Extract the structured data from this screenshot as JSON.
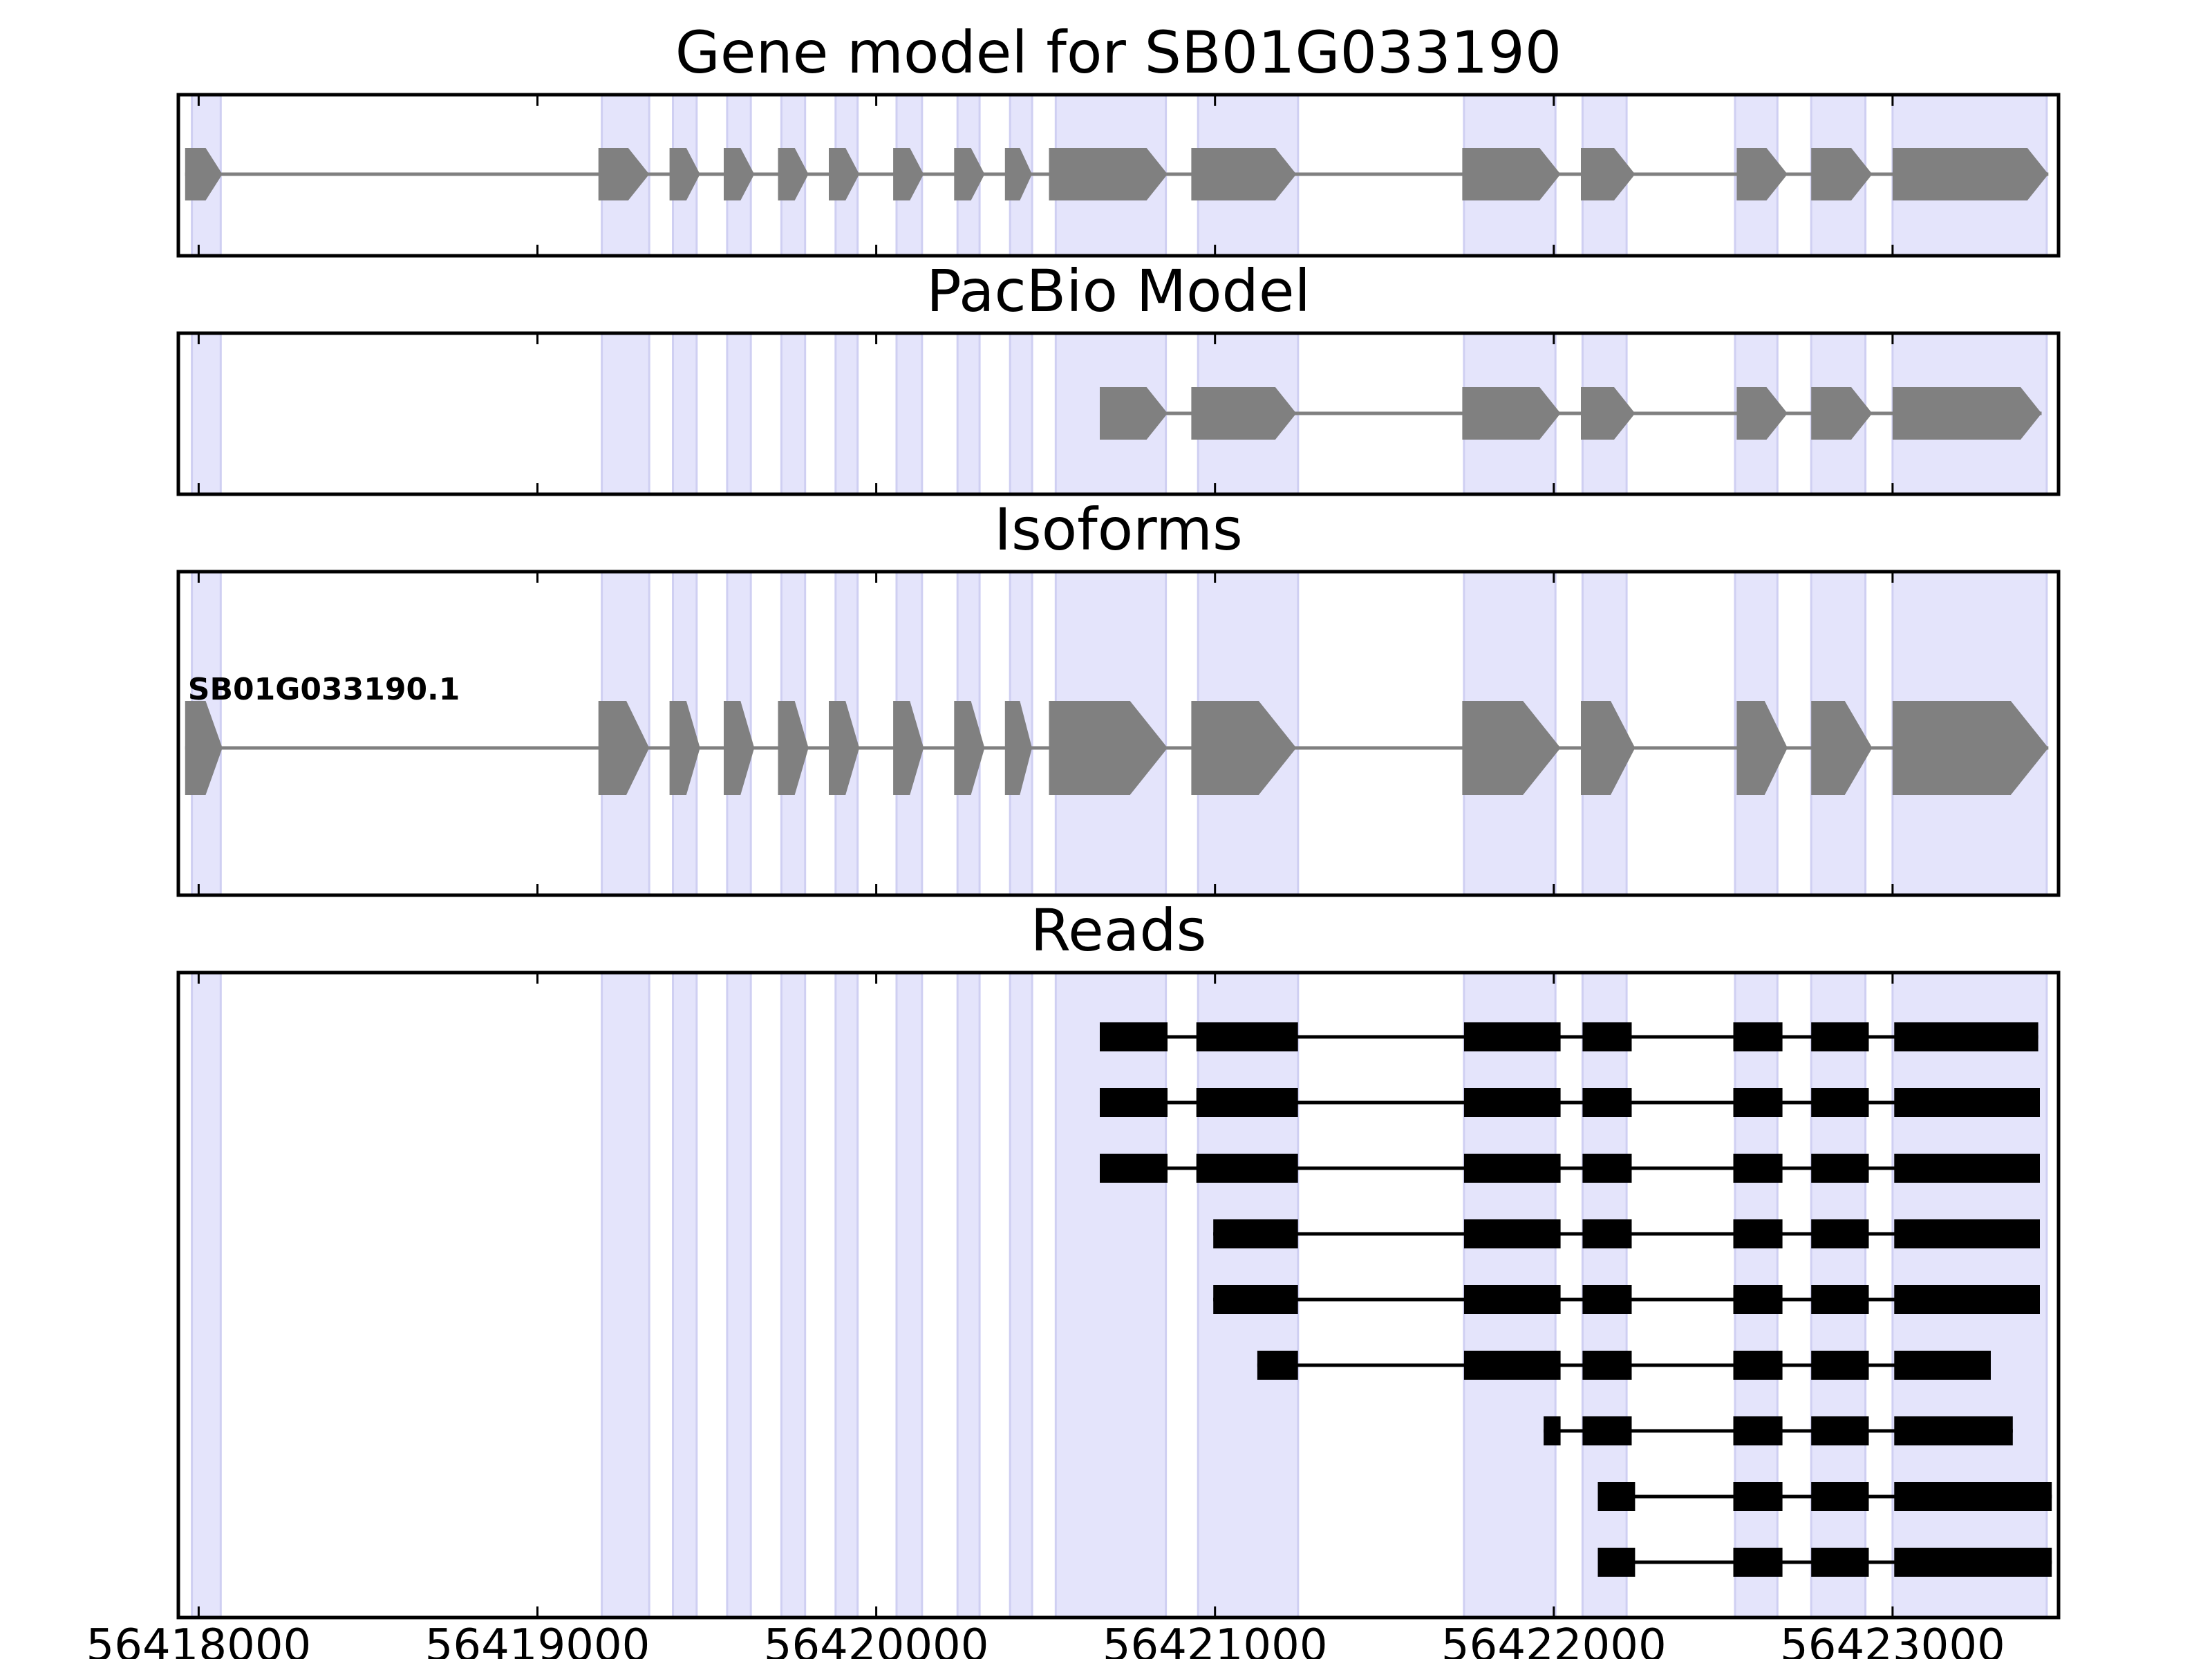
{
  "chart_data": {
    "type": "gene-model-track",
    "title": "Gene model for SB01G033190",
    "xlim": [
      56417940,
      56423490
    ],
    "xticks": [
      56418000,
      56419000,
      56420000,
      56421000,
      56422000,
      56423000
    ],
    "xtick_labels": [
      "56418000",
      "56419000",
      "56420000",
      "56421000",
      "56422000",
      "56423000"
    ],
    "shade_color": "#e4e4fb",
    "shade_edge_color": "#cfcff2",
    "model_color": "#808080",
    "read_color": "#000000",
    "shaded_regions": [
      [
        56417980,
        56418065
      ],
      [
        56419190,
        56419330
      ],
      [
        56419400,
        56419470
      ],
      [
        56419560,
        56419630
      ],
      [
        56419720,
        56419790
      ],
      [
        56419880,
        56419945
      ],
      [
        56420060,
        56420135
      ],
      [
        56420240,
        56420305
      ],
      [
        56420395,
        56420460
      ],
      [
        56420530,
        56420855
      ],
      [
        56420950,
        56421245
      ],
      [
        56421735,
        56422005
      ],
      [
        56422085,
        56422215
      ],
      [
        56422535,
        56422660
      ],
      [
        56422760,
        56422920
      ],
      [
        56423000,
        56423455
      ]
    ],
    "panels": [
      {
        "title": "Gene model for SB01G033190",
        "kind": "gene-model",
        "exons": [
          [
            56417960,
            56418070
          ],
          [
            56419180,
            56419330
          ],
          [
            56419390,
            56419480
          ],
          [
            56419550,
            56419640
          ],
          [
            56419710,
            56419800
          ],
          [
            56419860,
            56419950
          ],
          [
            56420050,
            56420140
          ],
          [
            56420230,
            56420320
          ],
          [
            56420380,
            56420460
          ],
          [
            56420510,
            56420860
          ],
          [
            56420930,
            56421240
          ],
          [
            56421730,
            56422020
          ],
          [
            56422080,
            56422240
          ],
          [
            56422540,
            56422690
          ],
          [
            56422760,
            56422940
          ],
          [
            56423000,
            56423460
          ]
        ]
      },
      {
        "title": "PacBio Model",
        "kind": "gene-model",
        "exons": [
          [
            56420660,
            56420860
          ],
          [
            56420930,
            56421240
          ],
          [
            56421730,
            56422020
          ],
          [
            56422080,
            56422240
          ],
          [
            56422540,
            56422690
          ],
          [
            56422760,
            56422940
          ],
          [
            56423000,
            56423440
          ]
        ]
      },
      {
        "title": "Isoforms",
        "kind": "isoform",
        "isoform_label": "SB01G033190.1",
        "exons": [
          [
            56417960,
            56418070
          ],
          [
            56419180,
            56419330
          ],
          [
            56419390,
            56419480
          ],
          [
            56419550,
            56419640
          ],
          [
            56419710,
            56419800
          ],
          [
            56419860,
            56419950
          ],
          [
            56420050,
            56420140
          ],
          [
            56420230,
            56420320
          ],
          [
            56420380,
            56420460
          ],
          [
            56420510,
            56420860
          ],
          [
            56420930,
            56421240
          ],
          [
            56421730,
            56422020
          ],
          [
            56422080,
            56422240
          ],
          [
            56422540,
            56422690
          ],
          [
            56422760,
            56422940
          ],
          [
            56423000,
            56423460
          ]
        ]
      },
      {
        "title": "Reads",
        "kind": "reads",
        "reads": [
          [
            [
              56420660,
              56420860
            ],
            [
              56420945,
              56421245
            ],
            [
              56421735,
              56422020
            ],
            [
              56422085,
              56422230
            ],
            [
              56422530,
              56422675
            ],
            [
              56422760,
              56422930
            ],
            [
              56423005,
              56423430
            ]
          ],
          [
            [
              56420660,
              56420860
            ],
            [
              56420945,
              56421245
            ],
            [
              56421735,
              56422020
            ],
            [
              56422085,
              56422230
            ],
            [
              56422530,
              56422675
            ],
            [
              56422760,
              56422930
            ],
            [
              56423005,
              56423435
            ]
          ],
          [
            [
              56420660,
              56420860
            ],
            [
              56420945,
              56421245
            ],
            [
              56421735,
              56422020
            ],
            [
              56422085,
              56422230
            ],
            [
              56422530,
              56422675
            ],
            [
              56422760,
              56422930
            ],
            [
              56423005,
              56423435
            ]
          ],
          [
            [
              56420995,
              56421245
            ],
            [
              56421735,
              56422020
            ],
            [
              56422085,
              56422230
            ],
            [
              56422530,
              56422675
            ],
            [
              56422760,
              56422930
            ],
            [
              56423005,
              56423435
            ]
          ],
          [
            [
              56420995,
              56421245
            ],
            [
              56421735,
              56422020
            ],
            [
              56422085,
              56422230
            ],
            [
              56422530,
              56422675
            ],
            [
              56422760,
              56422930
            ],
            [
              56423005,
              56423435
            ]
          ],
          [
            [
              56421125,
              56421245
            ],
            [
              56421735,
              56422020
            ],
            [
              56422085,
              56422230
            ],
            [
              56422530,
              56422675
            ],
            [
              56422760,
              56422930
            ],
            [
              56423005,
              56423290
            ]
          ],
          [
            [
              56421970,
              56422020
            ],
            [
              56422085,
              56422230
            ],
            [
              56422530,
              56422675
            ],
            [
              56422760,
              56422930
            ],
            [
              56423005,
              56423355
            ]
          ],
          [
            [
              56422130,
              56422240
            ],
            [
              56422530,
              56422675
            ],
            [
              56422760,
              56422930
            ],
            [
              56423005,
              56423470
            ]
          ],
          [
            [
              56422130,
              56422240
            ],
            [
              56422530,
              56422675
            ],
            [
              56422760,
              56422930
            ],
            [
              56423005,
              56423470
            ]
          ]
        ]
      }
    ]
  }
}
